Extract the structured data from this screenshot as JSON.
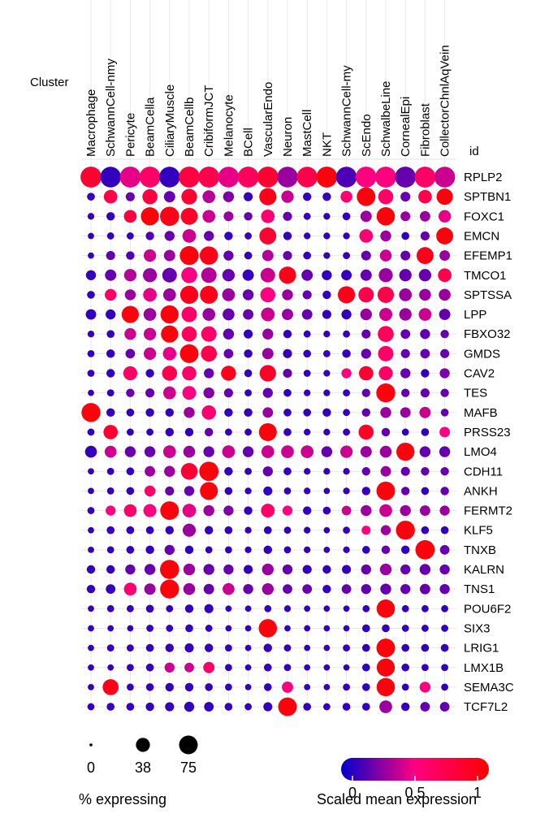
{
  "chart_data": {
    "type": "dotplot",
    "cluster_label": "Cluster",
    "id_label": "id",
    "clusters": [
      "Macrophage",
      "SchwannCell-nmy",
      "Pericyte",
      "BeamCella",
      "CiliaryMuscle",
      "BeamCellb",
      "CribiformJCT",
      "Melanocyte",
      "BCell",
      "VascularEndo",
      "Neuron",
      "MastCell",
      "NKT",
      "SchwannCell-my",
      "ScEndo",
      "SchwalbeLine",
      "CornealEpi",
      "Fibroblast",
      "CollectorChnlAqVein"
    ],
    "genes": [
      "RPLP2",
      "SPTBN1",
      "FOXC1",
      "EMCN",
      "EFEMP1",
      "TMCO1",
      "SPTSSA",
      "LPP",
      "FBXO32",
      "GMDS",
      "CAV2",
      "TES",
      "MAFB",
      "PRSS23",
      "LMO4",
      "CDH11",
      "ANKH",
      "FERMT2",
      "KLF5",
      "TNXB",
      "KALRN",
      "TNS1",
      "POU6F2",
      "SIX3",
      "LRIG1",
      "LMX1B",
      "SEMA3C",
      "TCF7L2"
    ],
    "pct_expressing": [
      [
        98,
        95,
        97,
        97,
        96,
        98,
        97,
        96,
        97,
        98,
        96,
        95,
        97,
        96,
        97,
        98,
        97,
        97,
        96
      ],
      [
        8,
        35,
        12,
        45,
        22,
        50,
        30,
        20,
        12,
        62,
        28,
        10,
        10,
        25,
        75,
        45,
        15,
        35,
        55
      ],
      [
        5,
        10,
        30,
        70,
        80,
        60,
        30,
        15,
        10,
        35,
        12,
        6,
        5,
        8,
        22,
        72,
        15,
        18,
        28
      ],
      [
        4,
        6,
        6,
        10,
        16,
        35,
        16,
        10,
        6,
        60,
        10,
        5,
        5,
        5,
        35,
        20,
        8,
        12,
        60
      ],
      [
        4,
        12,
        10,
        28,
        22,
        78,
        72,
        16,
        8,
        22,
        12,
        8,
        5,
        6,
        15,
        25,
        15,
        60,
        18
      ],
      [
        16,
        22,
        28,
        38,
        42,
        52,
        48,
        28,
        22,
        42,
        62,
        22,
        16,
        18,
        22,
        38,
        28,
        28,
        35
      ],
      [
        8,
        24,
        20,
        35,
        30,
        70,
        68,
        30,
        20,
        45,
        20,
        12,
        10,
        62,
        48,
        55,
        30,
        25,
        25
      ],
      [
        18,
        16,
        62,
        30,
        70,
        48,
        30,
        25,
        18,
        36,
        22,
        18,
        12,
        16,
        24,
        32,
        28,
        30,
        22
      ],
      [
        5,
        8,
        24,
        28,
        62,
        46,
        48,
        20,
        12,
        20,
        10,
        6,
        5,
        6,
        12,
        52,
        14,
        16,
        10
      ],
      [
        6,
        10,
        14,
        28,
        34,
        75,
        52,
        14,
        10,
        22,
        12,
        8,
        6,
        10,
        16,
        48,
        12,
        14,
        12
      ],
      [
        6,
        10,
        38,
        10,
        45,
        40,
        16,
        45,
        8,
        56,
        12,
        6,
        5,
        16,
        40,
        38,
        16,
        10,
        16
      ],
      [
        4,
        6,
        10,
        12,
        30,
        36,
        20,
        12,
        6,
        16,
        8,
        5,
        5,
        6,
        10,
        78,
        10,
        12,
        10
      ],
      [
        78,
        10,
        8,
        10,
        10,
        20,
        40,
        10,
        10,
        18,
        8,
        8,
        10,
        6,
        10,
        20,
        18,
        22,
        8
      ],
      [
        6,
        40,
        6,
        6,
        10,
        10,
        10,
        6,
        6,
        68,
        8,
        5,
        5,
        6,
        45,
        10,
        6,
        8,
        18
      ],
      [
        25,
        25,
        20,
        20,
        30,
        25,
        20,
        30,
        20,
        30,
        30,
        30,
        20,
        28,
        22,
        25,
        70,
        20,
        20
      ],
      [
        4,
        6,
        8,
        18,
        20,
        58,
        82,
        10,
        6,
        16,
        8,
        5,
        5,
        5,
        10,
        18,
        12,
        10,
        10
      ],
      [
        4,
        6,
        8,
        20,
        12,
        16,
        68,
        8,
        5,
        12,
        6,
        5,
        4,
        5,
        10,
        75,
        10,
        8,
        10
      ],
      [
        6,
        16,
        30,
        32,
        75,
        35,
        20,
        16,
        10,
        36,
        16,
        10,
        8,
        14,
        20,
        30,
        20,
        18,
        16
      ],
      [
        4,
        8,
        8,
        8,
        10,
        32,
        10,
        8,
        5,
        8,
        6,
        5,
        4,
        6,
        12,
        16,
        78,
        8,
        8
      ],
      [
        4,
        6,
        8,
        10,
        16,
        10,
        6,
        6,
        5,
        10,
        6,
        5,
        4,
        5,
        8,
        10,
        10,
        82,
        14
      ],
      [
        10,
        10,
        16,
        20,
        80,
        24,
        20,
        16,
        12,
        24,
        16,
        12,
        10,
        12,
        16,
        24,
        16,
        20,
        16
      ],
      [
        10,
        14,
        30,
        22,
        78,
        25,
        18,
        25,
        16,
        24,
        14,
        14,
        10,
        14,
        16,
        20,
        16,
        18,
        16
      ],
      [
        4,
        6,
        6,
        8,
        6,
        10,
        12,
        4,
        4,
        6,
        5,
        4,
        4,
        4,
        6,
        72,
        6,
        6,
        6
      ],
      [
        4,
        4,
        4,
        6,
        6,
        8,
        6,
        4,
        4,
        72,
        4,
        4,
        4,
        4,
        8,
        8,
        6,
        6,
        6
      ],
      [
        4,
        6,
        6,
        8,
        10,
        12,
        10,
        6,
        4,
        10,
        6,
        4,
        4,
        6,
        8,
        75,
        8,
        8,
        8
      ],
      [
        4,
        4,
        6,
        8,
        16,
        14,
        22,
        6,
        4,
        8,
        6,
        4,
        4,
        4,
        8,
        70,
        8,
        6,
        6
      ],
      [
        4,
        52,
        6,
        8,
        10,
        10,
        8,
        6,
        4,
        8,
        22,
        4,
        4,
        6,
        8,
        72,
        6,
        20,
        6
      ],
      [
        6,
        8,
        8,
        10,
        12,
        16,
        14,
        8,
        6,
        12,
        75,
        8,
        6,
        8,
        8,
        30,
        10,
        14,
        14
      ]
    ],
    "scaled_expression": [
      [
        0.8,
        0.1,
        0.45,
        0.6,
        0.1,
        0.75,
        0.7,
        0.45,
        0.65,
        0.8,
        0.3,
        0.7,
        0.95,
        0.15,
        0.5,
        0.5,
        0.2,
        0.6,
        0.4
      ],
      [
        0.1,
        0.7,
        0.2,
        0.75,
        0.2,
        0.8,
        0.35,
        0.25,
        0.1,
        0.9,
        0.4,
        0.1,
        0.1,
        0.55,
        0.95,
        0.6,
        0.2,
        0.7,
        0.95
      ],
      [
        0.1,
        0.1,
        0.75,
        0.95,
        0.9,
        0.85,
        0.4,
        0.3,
        0.2,
        0.55,
        0.2,
        0.1,
        0.1,
        0.1,
        0.3,
        0.95,
        0.3,
        0.3,
        0.45
      ],
      [
        0.1,
        0.1,
        0.1,
        0.15,
        0.2,
        0.4,
        0.2,
        0.1,
        0.1,
        0.8,
        0.1,
        0.1,
        0.1,
        0.1,
        0.55,
        0.3,
        0.1,
        0.2,
        0.95
      ],
      [
        0.1,
        0.2,
        0.15,
        0.4,
        0.3,
        0.95,
        0.9,
        0.2,
        0.1,
        0.35,
        0.2,
        0.1,
        0.1,
        0.1,
        0.2,
        0.4,
        0.2,
        0.9,
        0.3
      ],
      [
        0.1,
        0.2,
        0.35,
        0.3,
        0.2,
        0.5,
        0.35,
        0.2,
        0.1,
        0.4,
        0.9,
        0.2,
        0.1,
        0.1,
        0.2,
        0.3,
        0.2,
        0.2,
        0.7
      ],
      [
        0.1,
        0.6,
        0.3,
        0.45,
        0.3,
        0.9,
        0.9,
        0.3,
        0.2,
        0.5,
        0.3,
        0.2,
        0.1,
        0.9,
        0.7,
        0.7,
        0.3,
        0.3,
        0.3
      ],
      [
        0.1,
        0.1,
        0.95,
        0.3,
        0.95,
        0.6,
        0.3,
        0.2,
        0.2,
        0.4,
        0.3,
        0.2,
        0.1,
        0.1,
        0.3,
        0.4,
        0.3,
        0.4,
        0.2
      ],
      [
        0.1,
        0.1,
        0.4,
        0.4,
        0.95,
        0.65,
        0.6,
        0.2,
        0.1,
        0.3,
        0.1,
        0.1,
        0.1,
        0.1,
        0.2,
        0.65,
        0.2,
        0.2,
        0.2
      ],
      [
        0.1,
        0.1,
        0.2,
        0.4,
        0.45,
        0.95,
        0.7,
        0.2,
        0.1,
        0.3,
        0.1,
        0.1,
        0.1,
        0.1,
        0.2,
        0.6,
        0.2,
        0.2,
        0.2
      ],
      [
        0.1,
        0.1,
        0.6,
        0.1,
        0.7,
        0.6,
        0.2,
        0.9,
        0.1,
        0.85,
        0.2,
        0.1,
        0.1,
        0.5,
        0.8,
        0.6,
        0.2,
        0.1,
        0.25
      ],
      [
        0.1,
        0.1,
        0.2,
        0.2,
        0.4,
        0.5,
        0.25,
        0.2,
        0.1,
        0.2,
        0.1,
        0.1,
        0.1,
        0.1,
        0.2,
        0.95,
        0.2,
        0.2,
        0.2
      ],
      [
        0.95,
        0.1,
        0.1,
        0.1,
        0.1,
        0.3,
        0.55,
        0.1,
        0.1,
        0.3,
        0.1,
        0.1,
        0.1,
        0.1,
        0.2,
        0.3,
        0.3,
        0.4,
        0.2
      ],
      [
        0.1,
        0.8,
        0.1,
        0.1,
        0.1,
        0.1,
        0.2,
        0.1,
        0.1,
        0.95,
        0.1,
        0.1,
        0.1,
        0.1,
        0.85,
        0.2,
        0.1,
        0.1,
        0.5
      ],
      [
        0.1,
        0.4,
        0.2,
        0.2,
        0.4,
        0.3,
        0.2,
        0.4,
        0.2,
        0.4,
        0.4,
        0.4,
        0.2,
        0.4,
        0.3,
        0.3,
        0.95,
        0.2,
        0.2
      ],
      [
        0.1,
        0.1,
        0.1,
        0.3,
        0.3,
        0.8,
        0.95,
        0.1,
        0.1,
        0.2,
        0.1,
        0.1,
        0.1,
        0.1,
        0.2,
        0.3,
        0.2,
        0.2,
        0.2
      ],
      [
        0.1,
        0.1,
        0.1,
        0.6,
        0.2,
        0.2,
        0.95,
        0.1,
        0.1,
        0.1,
        0.1,
        0.1,
        0.1,
        0.1,
        0.1,
        0.95,
        0.2,
        0.1,
        0.2
      ],
      [
        0.1,
        0.5,
        0.6,
        0.5,
        0.95,
        0.45,
        0.3,
        0.25,
        0.1,
        0.6,
        0.5,
        0.1,
        0.1,
        0.4,
        0.3,
        0.4,
        0.3,
        0.3,
        0.3
      ],
      [
        0.1,
        0.1,
        0.1,
        0.1,
        0.1,
        0.3,
        0.1,
        0.1,
        0.1,
        0.1,
        0.1,
        0.1,
        0.1,
        0.1,
        0.5,
        0.3,
        0.95,
        0.1,
        0.1
      ],
      [
        0.1,
        0.1,
        0.1,
        0.1,
        0.2,
        0.1,
        0.1,
        0.1,
        0.1,
        0.1,
        0.1,
        0.1,
        0.1,
        0.1,
        0.1,
        0.2,
        0.1,
        0.95,
        0.2
      ],
      [
        0.1,
        0.1,
        0.2,
        0.2,
        0.95,
        0.3,
        0.2,
        0.2,
        0.1,
        0.3,
        0.2,
        0.1,
        0.1,
        0.1,
        0.2,
        0.3,
        0.2,
        0.2,
        0.2
      ],
      [
        0.1,
        0.1,
        0.55,
        0.3,
        0.95,
        0.3,
        0.2,
        0.4,
        0.2,
        0.3,
        0.2,
        0.2,
        0.1,
        0.2,
        0.2,
        0.2,
        0.2,
        0.2,
        0.2
      ],
      [
        0.1,
        0.1,
        0.1,
        0.1,
        0.1,
        0.1,
        0.1,
        0.1,
        0.1,
        0.1,
        0.1,
        0.1,
        0.1,
        0.1,
        0.1,
        0.95,
        0.1,
        0.1,
        0.1
      ],
      [
        0.1,
        0.1,
        0.1,
        0.1,
        0.1,
        0.1,
        0.1,
        0.1,
        0.1,
        0.95,
        0.1,
        0.1,
        0.1,
        0.1,
        0.1,
        0.1,
        0.1,
        0.1,
        0.1
      ],
      [
        0.1,
        0.1,
        0.1,
        0.1,
        0.1,
        0.1,
        0.1,
        0.1,
        0.1,
        0.1,
        0.1,
        0.1,
        0.1,
        0.1,
        0.1,
        0.95,
        0.1,
        0.1,
        0.1
      ],
      [
        0.1,
        0.1,
        0.1,
        0.1,
        0.4,
        0.4,
        0.6,
        0.1,
        0.1,
        0.1,
        0.1,
        0.1,
        0.1,
        0.1,
        0.1,
        0.95,
        0.1,
        0.1,
        0.1
      ],
      [
        0.1,
        0.9,
        0.1,
        0.1,
        0.1,
        0.1,
        0.1,
        0.1,
        0.1,
        0.1,
        0.5,
        0.1,
        0.1,
        0.1,
        0.1,
        0.95,
        0.1,
        0.5,
        0.1
      ],
      [
        0.1,
        0.1,
        0.1,
        0.1,
        0.1,
        0.1,
        0.1,
        0.1,
        0.1,
        0.1,
        0.95,
        0.1,
        0.1,
        0.1,
        0.1,
        0.3,
        0.1,
        0.2,
        0.2
      ]
    ],
    "size_legend": {
      "title": "% expressing",
      "values": [
        0,
        38,
        75
      ],
      "labels": [
        "0",
        "38",
        "75"
      ]
    },
    "color_legend": {
      "title": "Scaled mean expression",
      "ticks": [
        0,
        0.5,
        1
      ],
      "tick_labels": [
        "0",
        "0.5",
        "1"
      ]
    },
    "color_scale": [
      "#0000cc",
      "#ff0080",
      "#ff0000"
    ],
    "grid": true
  }
}
